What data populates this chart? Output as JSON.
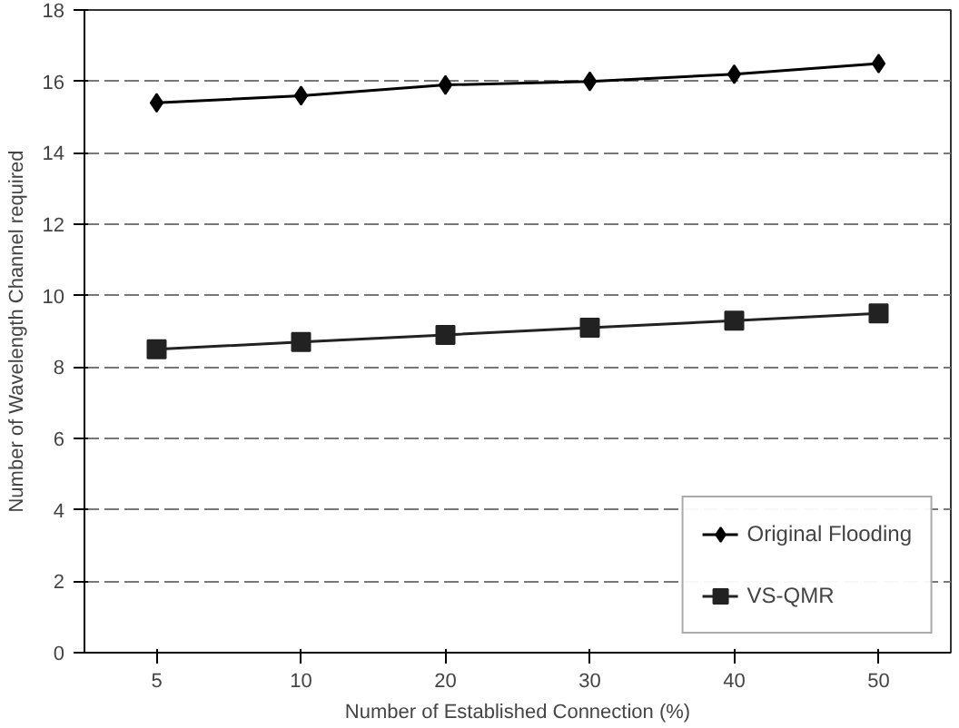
{
  "chart_data": {
    "type": "line",
    "xlabel": "Number of Established Connection (%)",
    "ylabel": "Number of Wavelength Channel required",
    "categories": [
      "5",
      "10",
      "20",
      "30",
      "40",
      "50"
    ],
    "series": [
      {
        "name": "Original Flooding",
        "color": "#000000",
        "marker": "diamond",
        "values": [
          15.4,
          15.6,
          15.9,
          16.0,
          16.2,
          16.5
        ]
      },
      {
        "name": "VS-QMR",
        "color": "#222222",
        "marker": "square",
        "values": [
          8.5,
          8.7,
          8.9,
          9.1,
          9.3,
          9.5
        ]
      }
    ],
    "ylim": [
      0,
      18
    ],
    "yticks": [
      0,
      2,
      4,
      6,
      8,
      10,
      12,
      14,
      16,
      18
    ],
    "grid": "y",
    "legend": "bottom right",
    "line_style": "solid"
  }
}
